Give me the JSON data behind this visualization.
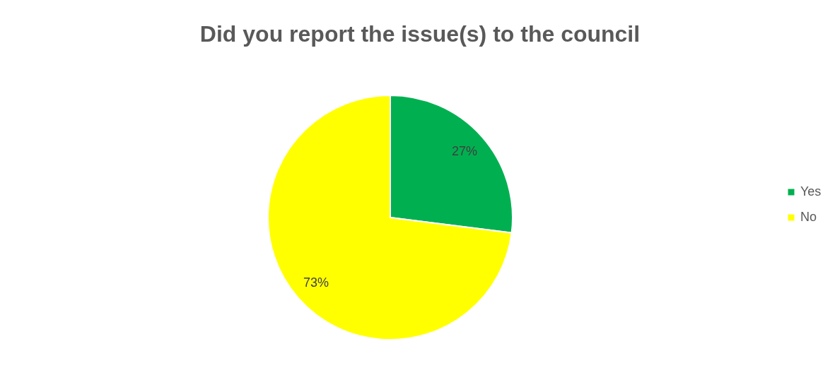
{
  "chart_data": {
    "type": "pie",
    "title": "Did you report the issue(s) to the council",
    "categories": [
      "Yes",
      "No"
    ],
    "values": [
      27,
      73
    ],
    "value_labels": [
      "27%",
      "73%"
    ],
    "colors": [
      "#00b050",
      "#ffff00"
    ],
    "legend": "right"
  }
}
